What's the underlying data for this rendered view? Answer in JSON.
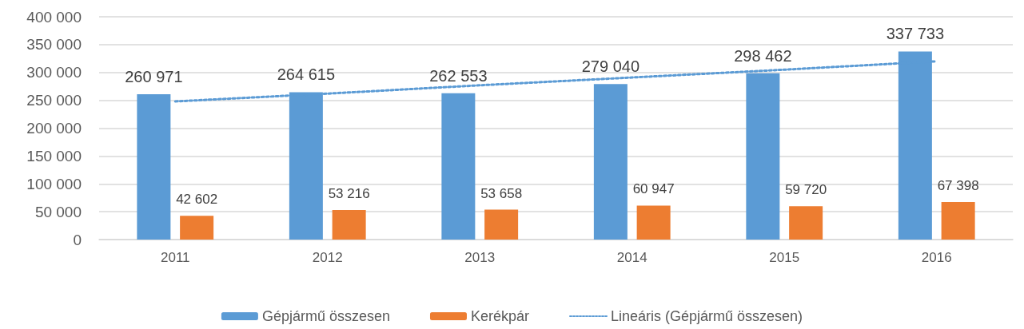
{
  "chart_data": {
    "type": "bar",
    "categories": [
      "2011",
      "2012",
      "2013",
      "2014",
      "2015",
      "2016"
    ],
    "series": [
      {
        "name": "Gépjármű összesen",
        "color": "#5b9bd5",
        "values": [
          260971,
          264615,
          262553,
          279040,
          298462,
          337733
        ],
        "value_labels": [
          "260 971",
          "264 615",
          "262 553",
          "279 040",
          "298 462",
          "337 733"
        ]
      },
      {
        "name": "Kerékpár",
        "color": "#ed7d31",
        "values": [
          42602,
          53216,
          53658,
          60947,
          59720,
          67398
        ],
        "value_labels": [
          "42 602",
          "53 216",
          "53 658",
          "60 947",
          "59 720",
          "67 398"
        ]
      },
      {
        "name": "Lineáris (Gépjármű összesen)",
        "type": "line",
        "color": "#5b9bd5",
        "values": [
          248000,
          262000,
          277000,
          291000,
          305000,
          320000
        ]
      }
    ],
    "ylim": [
      0,
      400000
    ],
    "yticks": [
      0,
      {
        "value": 50000,
        "label": "50 000"
      },
      {
        "value": 100000,
        "label": "100 000"
      },
      {
        "value": 150000,
        "label": "150 000"
      },
      {
        "value": 200000,
        "label": "200 000"
      },
      {
        "value": 250000,
        "label": "250 000"
      },
      {
        "value": 300000,
        "label": "300 000"
      },
      {
        "value": 350000,
        "label": "350 000"
      },
      {
        "value": 400000,
        "label": "400 000"
      }
    ],
    "grid": "y",
    "legend": "bottom",
    "marker": "none",
    "line_style": "dotted"
  }
}
